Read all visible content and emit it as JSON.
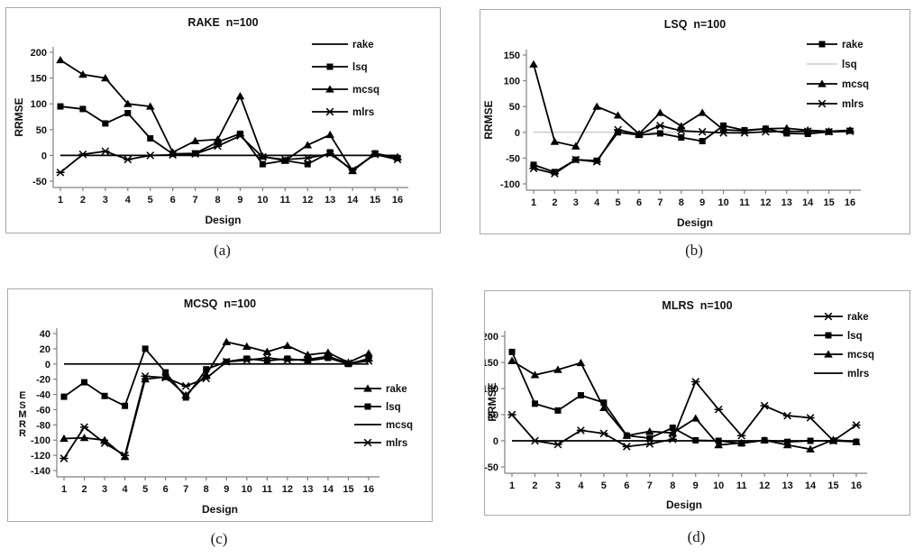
{
  "figure": {
    "captions": {
      "a": "(a)",
      "b": "(b)",
      "c": "(c)",
      "d": "(d)"
    }
  },
  "chart_data": [
    {
      "id": "a",
      "type": "line",
      "title": "RAKE  n=100",
      "xlabel": "Design",
      "ylabel": "RRMSE",
      "x": [
        1,
        2,
        3,
        4,
        5,
        6,
        7,
        8,
        9,
        10,
        11,
        12,
        13,
        14,
        15,
        16
      ],
      "ylim": [
        -50,
        200
      ],
      "yticks": [
        200,
        150,
        100,
        50,
        0,
        -50
      ],
      "grid": false,
      "legend_position": "top-right-inside",
      "series": [
        {
          "name": "rake",
          "marker": "none",
          "color": "#000000",
          "values": [
            0,
            0,
            0,
            0,
            0,
            0,
            0,
            0,
            0,
            0,
            0,
            0,
            0,
            0,
            0,
            0
          ]
        },
        {
          "name": "lsq",
          "marker": "square",
          "color": "#000000",
          "values": [
            95,
            90,
            62,
            82,
            33,
            3,
            4,
            26,
            42,
            -17,
            -10,
            -17,
            6,
            -30,
            4,
            -5
          ]
        },
        {
          "name": "mcsq",
          "marker": "triangle",
          "color": "#000000",
          "values": [
            185,
            157,
            150,
            100,
            95,
            6,
            28,
            31,
            115,
            -2,
            -10,
            20,
            40,
            -30,
            3,
            -3
          ]
        },
        {
          "name": "mlrs",
          "marker": "star",
          "color": "#000000",
          "values": [
            -33,
            2,
            8,
            -8,
            0,
            1,
            3,
            18,
            38,
            -3,
            -8,
            -5,
            3,
            -28,
            2,
            -8
          ]
        }
      ]
    },
    {
      "id": "b",
      "type": "line",
      "title": "LSQ  n=100",
      "xlabel": "Design",
      "ylabel": "RRMSE",
      "x": [
        1,
        2,
        3,
        4,
        5,
        6,
        7,
        8,
        9,
        10,
        11,
        12,
        13,
        14,
        15,
        16
      ],
      "ylim": [
        -100,
        150
      ],
      "yticks": [
        150,
        100,
        50,
        0,
        -50,
        -100
      ],
      "grid": false,
      "legend_position": "top-right-inside",
      "series": [
        {
          "name": "rake",
          "marker": "square",
          "color": "#000000",
          "values": [
            -63,
            -77,
            -53,
            -55,
            0,
            -5,
            -2,
            -10,
            -17,
            13,
            4,
            7,
            -2,
            -3,
            1,
            3
          ]
        },
        {
          "name": "lsq",
          "marker": "none",
          "color": "#b3b3b3",
          "values": [
            0,
            0,
            0,
            0,
            0,
            0,
            0,
            0,
            0,
            0,
            0,
            0,
            0,
            0,
            0,
            0
          ]
        },
        {
          "name": "mcsq",
          "marker": "triangle",
          "color": "#000000",
          "values": [
            132,
            -18,
            -27,
            50,
            33,
            -3,
            38,
            12,
            38,
            5,
            3,
            7,
            8,
            4,
            2,
            4
          ]
        },
        {
          "name": "mlrs",
          "marker": "star",
          "color": "#000000",
          "values": [
            -70,
            -80,
            -53,
            -57,
            5,
            -4,
            13,
            3,
            1,
            -1,
            -1,
            1,
            2,
            2,
            1,
            2
          ]
        }
      ]
    },
    {
      "id": "c",
      "type": "line",
      "title": "MCSQ  n=100",
      "xlabel": "Design",
      "ylabel": "RRMSE",
      "ylabel_stacked": true,
      "x": [
        1,
        2,
        3,
        4,
        5,
        6,
        7,
        8,
        9,
        10,
        11,
        12,
        13,
        14,
        15,
        16
      ],
      "ylim": [
        -140,
        40
      ],
      "yticks": [
        40,
        20,
        0,
        -20,
        -40,
        -60,
        -80,
        -100,
        -120,
        -140
      ],
      "grid": false,
      "legend_position": "middle-right-inside",
      "series": [
        {
          "name": "rake",
          "marker": "triangle",
          "color": "#000000",
          "values": [
            -98,
            -97,
            -100,
            -122,
            -20,
            -17,
            -41,
            -14,
            29,
            23,
            16,
            24,
            12,
            15,
            2,
            14
          ]
        },
        {
          "name": "lsq",
          "marker": "square",
          "color": "#000000",
          "values": [
            -43,
            -24,
            -42,
            -55,
            20,
            -11,
            -44,
            -7,
            3,
            7,
            4,
            7,
            4,
            8,
            0,
            7
          ]
        },
        {
          "name": "mcsq",
          "marker": "none",
          "color": "#000000",
          "values": [
            0,
            0,
            0,
            0,
            0,
            0,
            0,
            0,
            0,
            0,
            0,
            0,
            0,
            0,
            0,
            0
          ]
        },
        {
          "name": "mlrs",
          "marker": "star",
          "color": "#000000",
          "values": [
            -124,
            -83,
            -104,
            -120,
            -16,
            -18,
            -29,
            -19,
            3,
            5,
            8,
            5,
            6,
            10,
            1,
            4
          ]
        }
      ]
    },
    {
      "id": "d",
      "type": "line",
      "title": "MLRS  n=100",
      "xlabel": "Design",
      "ylabel": "RRMSE",
      "x": [
        1,
        2,
        3,
        4,
        5,
        6,
        7,
        8,
        9,
        10,
        11,
        12,
        13,
        14,
        15,
        16
      ],
      "ylim": [
        -50,
        200
      ],
      "yticks": [
        200,
        150,
        100,
        50,
        0,
        -50
      ],
      "grid": false,
      "legend_position": "top-right-inside",
      "series": [
        {
          "name": "rake",
          "marker": "star",
          "color": "#000000",
          "values": [
            50,
            0,
            -7,
            20,
            14,
            -11,
            -6,
            3,
            113,
            60,
            10,
            67,
            48,
            44,
            0,
            30
          ]
        },
        {
          "name": "lsq",
          "marker": "square",
          "color": "#000000",
          "values": [
            170,
            71,
            58,
            87,
            73,
            10,
            5,
            25,
            1,
            0,
            -5,
            1,
            -2,
            0,
            0,
            -2
          ]
        },
        {
          "name": "mcsq",
          "marker": "triangle",
          "color": "#000000",
          "values": [
            153,
            126,
            136,
            149,
            63,
            10,
            18,
            15,
            43,
            -8,
            -4,
            1,
            -8,
            -16,
            2,
            -2
          ]
        },
        {
          "name": "mlrs",
          "marker": "none",
          "color": "#000000",
          "values": [
            0,
            0,
            0,
            0,
            0,
            0,
            0,
            0,
            0,
            0,
            0,
            0,
            0,
            0,
            0,
            0
          ]
        }
      ]
    }
  ]
}
